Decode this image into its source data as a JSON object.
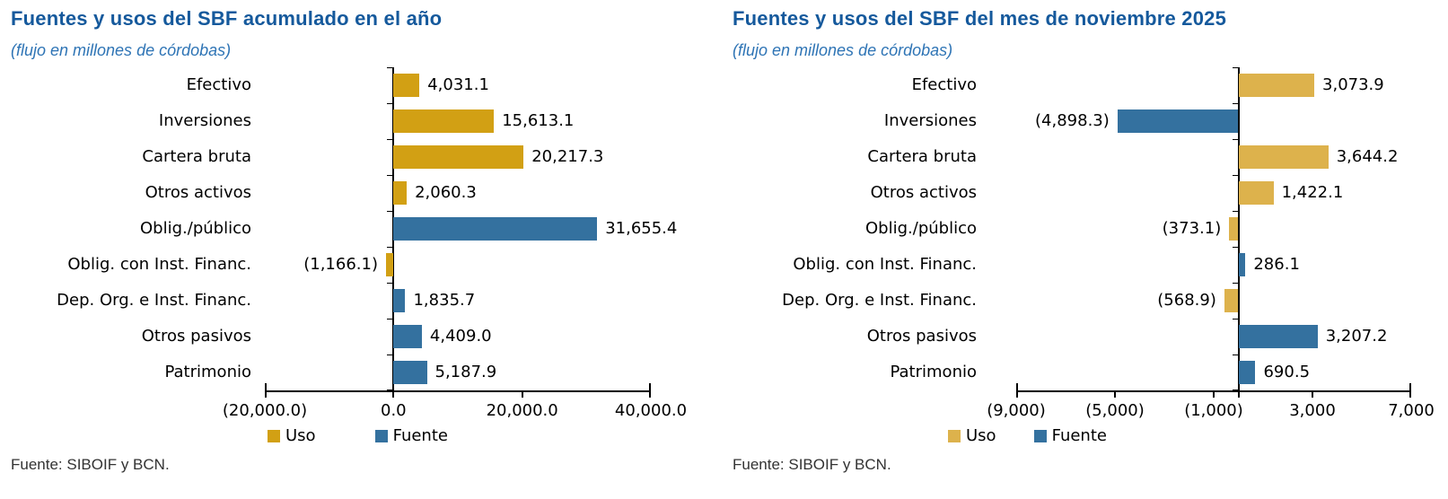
{
  "page": {
    "background": "#ffffff"
  },
  "colors": {
    "title": "#15599C",
    "subtitle": "#2E74B5",
    "axis": "#000000",
    "text": "#000000"
  },
  "chart_data": [
    {
      "type": "bar",
      "orientation": "horizontal",
      "title": "Fuentes y usos del SBF acumulado en el año",
      "subtitle": "(flujo en millones de córdobas)",
      "source": "Fuente: SIBOIF y BCN.",
      "grid": false,
      "legend_position": "bottom",
      "legend": [
        {
          "label": "Uso",
          "color": "#D2A014"
        },
        {
          "label": "Fuente",
          "color": "#34719F"
        }
      ],
      "axis": {
        "min": -20000,
        "max": 40000,
        "tick_values": [
          -20000,
          0,
          20000,
          40000
        ],
        "tick_labels": [
          "(20,000.0)",
          "0.0",
          "20,000.0",
          "40,000.0"
        ]
      },
      "rows": [
        {
          "category": "Efectivo",
          "value": 4031.1,
          "display": "4,031.1",
          "series": "Uso"
        },
        {
          "category": "Inversiones",
          "value": 15613.1,
          "display": "15,613.1",
          "series": "Uso"
        },
        {
          "category": "Cartera bruta",
          "value": 20217.3,
          "display": "20,217.3",
          "series": "Uso"
        },
        {
          "category": "Otros activos",
          "value": 2060.3,
          "display": "2,060.3",
          "series": "Uso"
        },
        {
          "category": "Oblig./público",
          "value": 31655.4,
          "display": "31,655.4",
          "series": "Fuente"
        },
        {
          "category": "Oblig. con Inst. Financ.",
          "value": -1166.1,
          "display": "(1,166.1)",
          "series": "Uso"
        },
        {
          "category": "Dep. Org. e Inst. Financ.",
          "value": 1835.7,
          "display": "1,835.7",
          "series": "Fuente"
        },
        {
          "category": "Otros pasivos",
          "value": 4409.0,
          "display": "4,409.0",
          "series": "Fuente"
        },
        {
          "category": "Patrimonio",
          "value": 5187.9,
          "display": "5,187.9",
          "series": "Fuente"
        }
      ]
    },
    {
      "type": "bar",
      "orientation": "horizontal",
      "title": "Fuentes y usos del SBF del mes de noviembre 2025",
      "subtitle": "(flujo en millones de córdobas)",
      "source": "Fuente: SIBOIF y BCN.",
      "grid": false,
      "legend_position": "bottom",
      "legend": [
        {
          "label": "Uso",
          "color": "#DDB24C"
        },
        {
          "label": "Fuente",
          "color": "#34719F"
        }
      ],
      "axis": {
        "min": -9000,
        "max": 7000,
        "tick_values": [
          -9000,
          -5000,
          -1000,
          3000,
          7000
        ],
        "tick_labels": [
          "(9,000)",
          "(5,000)",
          "(1,000)",
          "3,000",
          "7,000"
        ]
      },
      "rows": [
        {
          "category": "Efectivo",
          "value": 3073.9,
          "display": "3,073.9",
          "series": "Uso"
        },
        {
          "category": "Inversiones",
          "value": -4898.3,
          "display": "(4,898.3)",
          "series": "Fuente"
        },
        {
          "category": "Cartera bruta",
          "value": 3644.2,
          "display": "3,644.2",
          "series": "Uso"
        },
        {
          "category": "Otros activos",
          "value": 1422.1,
          "display": "1,422.1",
          "series": "Uso"
        },
        {
          "category": "Oblig./público",
          "value": -373.1,
          "display": "(373.1)",
          "series": "Uso"
        },
        {
          "category": "Oblig. con Inst. Financ.",
          "value": 286.1,
          "display": "286.1",
          "series": "Fuente"
        },
        {
          "category": "Dep. Org. e Inst. Financ.",
          "value": -568.9,
          "display": "(568.9)",
          "series": "Uso"
        },
        {
          "category": "Otros pasivos",
          "value": 3207.2,
          "display": "3,207.2",
          "series": "Fuente"
        },
        {
          "category": "Patrimonio",
          "value": 690.5,
          "display": "690.5",
          "series": "Fuente"
        }
      ]
    }
  ]
}
